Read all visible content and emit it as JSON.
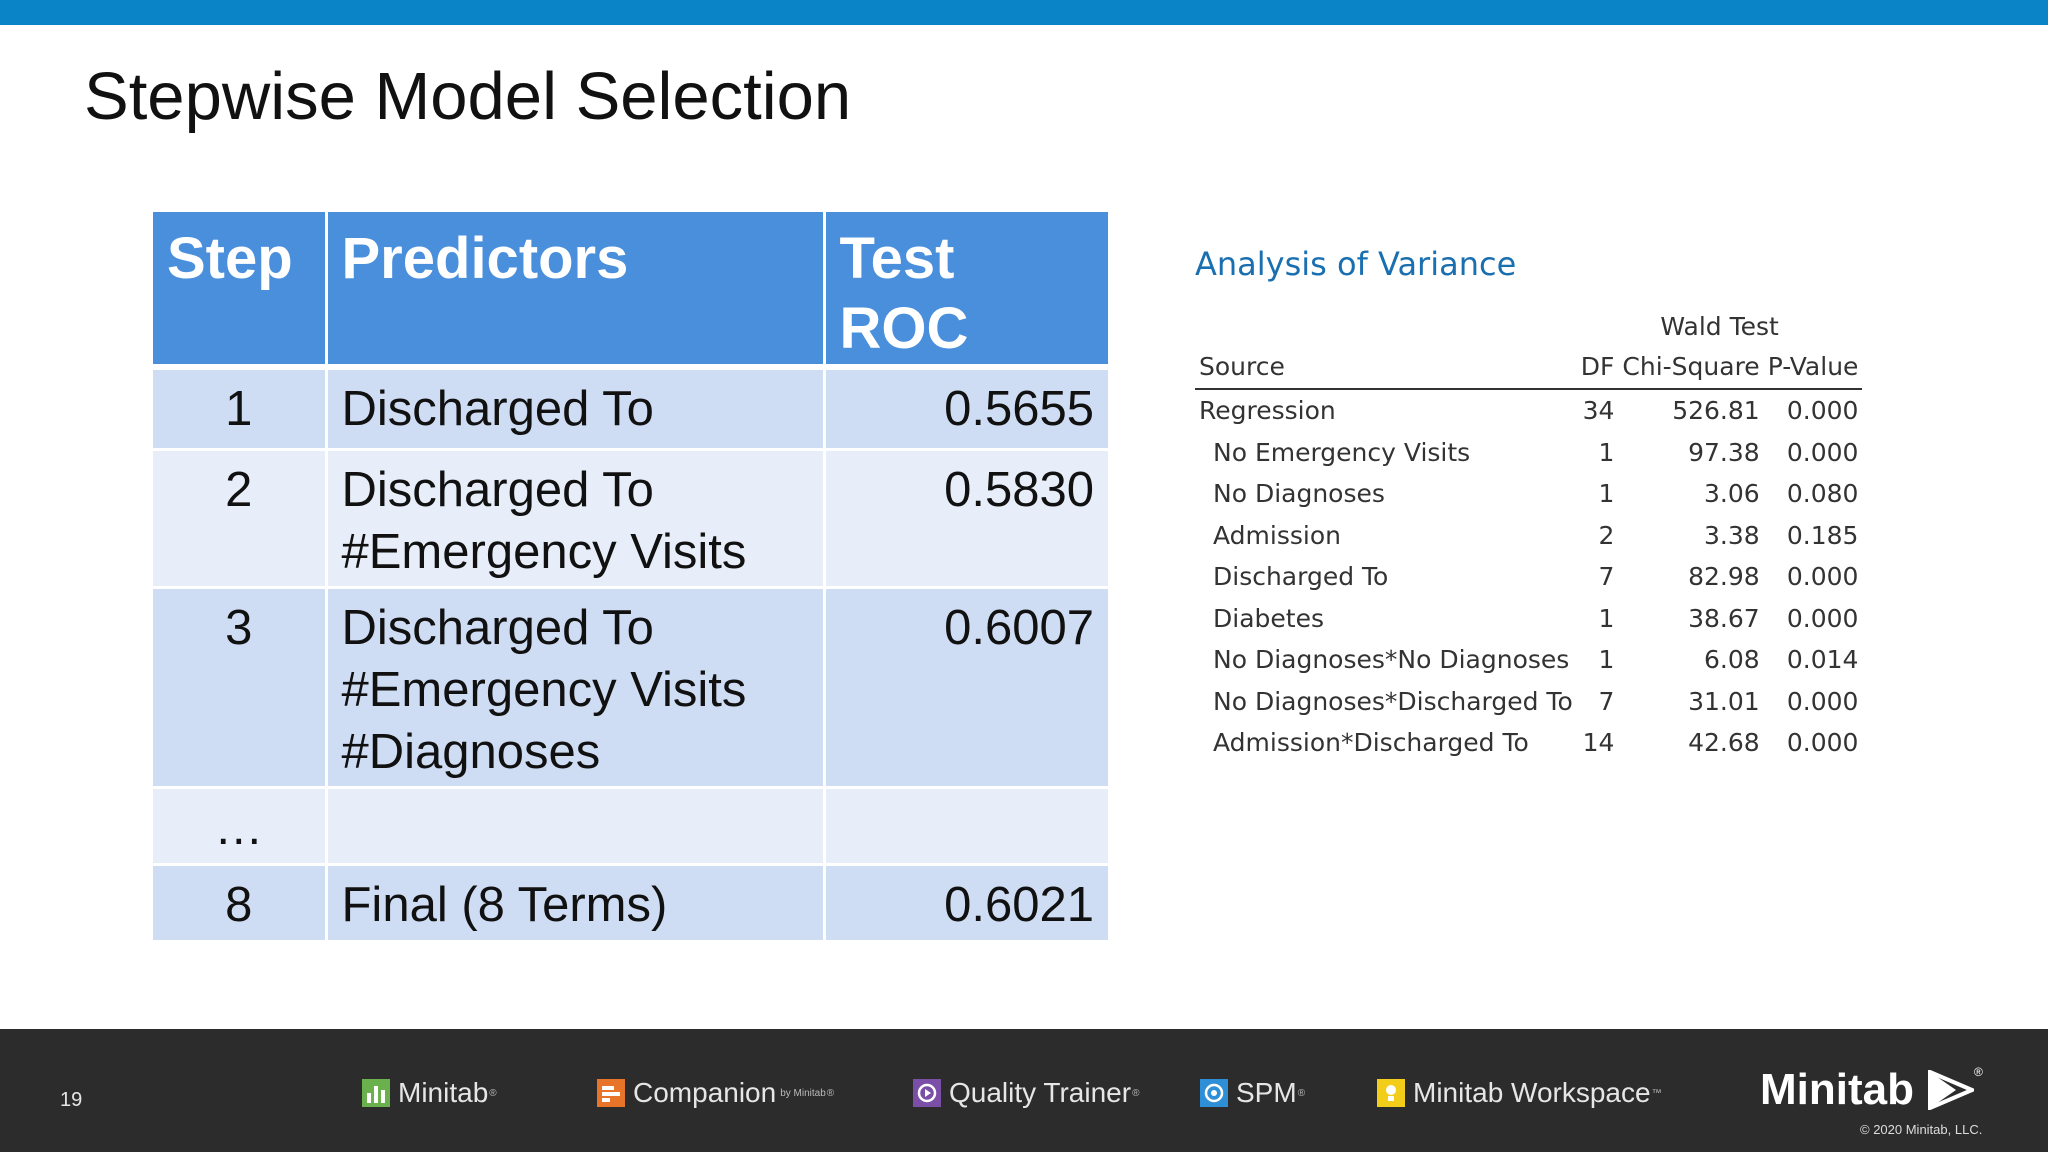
{
  "slide": {
    "title": "Stepwise Model Selection",
    "page_number": "19"
  },
  "step_table": {
    "headers": {
      "step": "Step",
      "predictors": "Predictors",
      "roc_line1": "Test",
      "roc_line2": "ROC"
    },
    "rows": [
      {
        "step": "1",
        "predictors": [
          "Discharged To"
        ],
        "roc": "0.5655"
      },
      {
        "step": "2",
        "predictors": [
          "Discharged To",
          "#Emergency Visits"
        ],
        "roc": "0.5830"
      },
      {
        "step": "3",
        "predictors": [
          "Discharged To",
          "#Emergency Visits",
          "#Diagnoses"
        ],
        "roc": "0.6007"
      },
      {
        "step": "…",
        "predictors": [
          ""
        ],
        "roc": ""
      },
      {
        "step": "8",
        "predictors": [
          "Final (8 Terms)"
        ],
        "roc": "0.6021"
      }
    ]
  },
  "anova": {
    "title": "Analysis of Variance",
    "group_header": "Wald Test",
    "columns": {
      "source": "Source",
      "df": "DF",
      "chi_square": "Chi-Square",
      "p_value": "P-Value"
    },
    "rows": [
      {
        "source": "Regression",
        "df": "34",
        "chi": "526.81",
        "p": "0.000"
      },
      {
        "source": "No Emergency Visits",
        "df": "1",
        "chi": "97.38",
        "p": "0.000"
      },
      {
        "source": "No Diagnoses",
        "df": "1",
        "chi": "3.06",
        "p": "0.080"
      },
      {
        "source": "Admission",
        "df": "2",
        "chi": "3.38",
        "p": "0.185"
      },
      {
        "source": "Discharged To",
        "df": "7",
        "chi": "82.98",
        "p": "0.000"
      },
      {
        "source": "Diabetes",
        "df": "1",
        "chi": "38.67",
        "p": "0.000"
      },
      {
        "source": "No Diagnoses*No Diagnoses",
        "df": "1",
        "chi": "6.08",
        "p": "0.014"
      },
      {
        "source": "No Diagnoses*Discharged To",
        "df": "7",
        "chi": "31.01",
        "p": "0.000"
      },
      {
        "source": "Admission*Discharged To",
        "df": "14",
        "chi": "42.68",
        "p": "0.000"
      }
    ]
  },
  "footer": {
    "products": {
      "minitab": {
        "name": "Minitab",
        "reg": "®",
        "icon": "minitab-bar-chart-icon",
        "color": "#6ab04c"
      },
      "companion": {
        "name": "Companion",
        "suffix": "by Minitab",
        "reg": "®",
        "icon": "companion-icon",
        "color": "#e8742a"
      },
      "quality_trainer": {
        "name": "Quality Trainer",
        "reg": "®",
        "icon": "quality-trainer-icon",
        "color": "#7b4fa8"
      },
      "spm": {
        "name": "SPM",
        "reg": "®",
        "icon": "spm-icon",
        "color": "#2f8fd6"
      },
      "workspace": {
        "name": "Minitab Workspace",
        "reg": "™",
        "icon": "workspace-icon",
        "color": "#f2cd1a"
      }
    },
    "brand": {
      "name": "Minitab",
      "reg": "®"
    },
    "copyright": "© 2020 Minitab, LLC."
  },
  "colors": {
    "top_bar": "#0b84c7",
    "table_header": "#4a8fdc",
    "row_dark": "#cfddf4",
    "row_light": "#e8eef9",
    "anova_title": "#1a6fb0",
    "footer_bg": "#2c2c2c"
  }
}
